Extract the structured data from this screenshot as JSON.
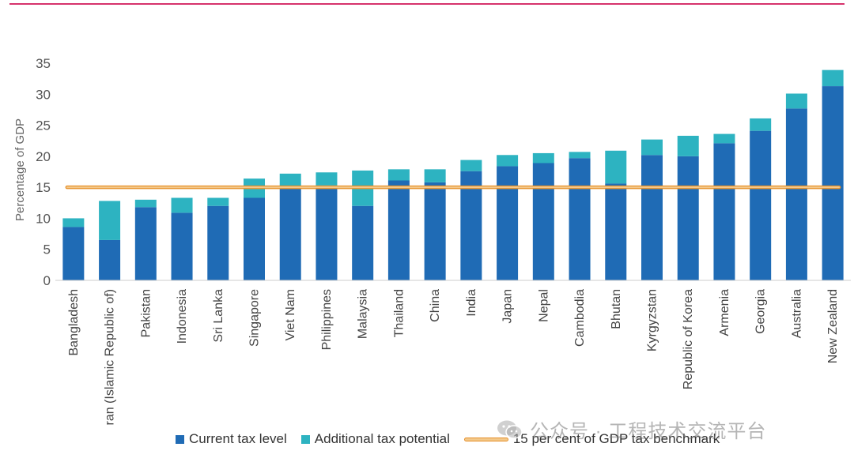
{
  "colors": {
    "current": "#1f6bb5",
    "additional": "#2db3c1",
    "benchmark_fill": "#f3c98b",
    "benchmark_edge": "#e6902a",
    "axis": "#cccccc",
    "top_rule": "#d6336c"
  },
  "chart_data": {
    "type": "bar",
    "stacked": true,
    "ylabel": "Percentage of GDP",
    "ylim": [
      0,
      35
    ],
    "yticks": [
      0,
      5,
      10,
      15,
      20,
      25,
      30,
      35
    ],
    "grid": false,
    "benchmark": {
      "value": 15,
      "label": "15 per cent of GDP tax benchmark"
    },
    "categories": [
      "Bangladesh",
      "Iran (Islamic Republic of)",
      "Pakistan",
      "Indonesia",
      "Sri Lanka",
      "Singapore",
      "Viet Nam",
      "Philippines",
      "Malaysia",
      "Thailand",
      "China",
      "India",
      "Japan",
      "Nepal",
      "Cambodia",
      "Bhutan",
      "Kyrgyzstan",
      "Republic of Korea",
      "Armenia",
      "Georgia",
      "Australia",
      "New Zealand"
    ],
    "series": [
      {
        "name": "Current tax level",
        "values": [
          8.6,
          6.5,
          11.8,
          10.9,
          12.0,
          13.3,
          14.9,
          15.3,
          12.0,
          16.1,
          15.8,
          17.6,
          18.4,
          18.9,
          19.7,
          15.6,
          20.2,
          20.0,
          22.1,
          24.1,
          27.7,
          31.3
        ]
      },
      {
        "name": "Additional tax potential",
        "values": [
          1.4,
          6.3,
          1.2,
          2.4,
          1.3,
          3.1,
          2.3,
          2.1,
          5.7,
          1.8,
          2.1,
          1.8,
          1.8,
          1.6,
          1.0,
          5.3,
          2.5,
          3.3,
          1.5,
          2.0,
          2.4,
          2.6
        ]
      }
    ]
  },
  "legend": {
    "current": "Current tax level",
    "additional": "Additional tax potential",
    "benchmark": "15 per cent of GDP tax benchmark"
  },
  "watermark": "公众号 · 工程技术交流平台"
}
